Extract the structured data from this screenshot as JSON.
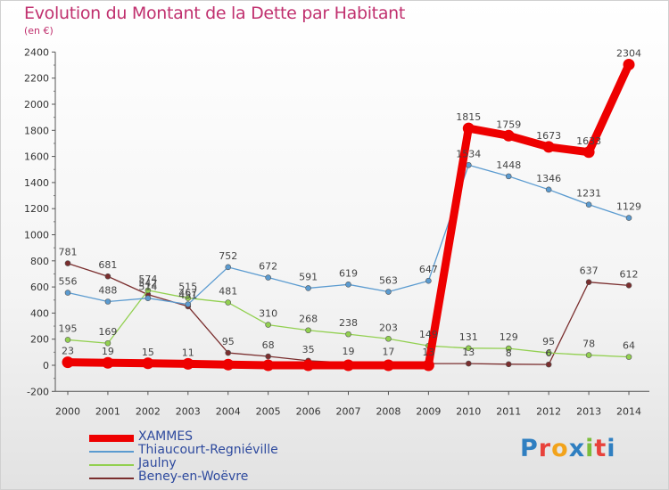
{
  "title": "Evolution du Montant de la Dette par Habitant",
  "subtitle": "(en €)",
  "brand": "Proxiti",
  "chart_data": {
    "type": "line",
    "title": "Evolution du Montant de la Dette par Habitant",
    "subtitle": "(en €)",
    "x": [
      2000,
      2001,
      2002,
      2003,
      2004,
      2005,
      2006,
      2007,
      2008,
      2009,
      2010,
      2011,
      2012,
      2013,
      2014
    ],
    "ylim": [
      -200,
      2400
    ],
    "yticks": [
      -200,
      0,
      200,
      400,
      600,
      800,
      1000,
      1200,
      1400,
      1600,
      1800,
      2000,
      2200,
      2400
    ],
    "grid": false,
    "legend_position": "bottom-left",
    "series": [
      {
        "name": "XAMMES",
        "color": "#ee0000",
        "values": [
          23,
          19,
          15,
          11,
          5,
          0,
          0,
          0,
          0,
          0,
          1815,
          1759,
          1673,
          1633,
          2304
        ],
        "labels": [
          "23",
          "19",
          "15",
          "11",
          "",
          "",
          "",
          "",
          "",
          "",
          "1815",
          "1759",
          "1673",
          "1633",
          "2304"
        ]
      },
      {
        "name": "Thiaucourt-Regniéville",
        "color": "#5b9bd0",
        "values": [
          556,
          488,
          514,
          467,
          752,
          672,
          591,
          619,
          563,
          647,
          1534,
          1448,
          1346,
          1231,
          1129
        ],
        "labels": [
          "556",
          "488",
          "514",
          "467",
          "752",
          "672",
          "591",
          "619",
          "563",
          "647",
          "1534",
          "1448",
          "1346",
          "1231",
          "1129"
        ]
      },
      {
        "name": "Jaulny",
        "color": "#92d050",
        "values": [
          195,
          169,
          574,
          515,
          481,
          310,
          268,
          238,
          203,
          149,
          131,
          129,
          95,
          78,
          64
        ],
        "labels": [
          "195",
          "169",
          "574",
          "515",
          "481",
          "310",
          "268",
          "238",
          "203",
          "149",
          "131",
          "129",
          "95",
          "78",
          "64"
        ]
      },
      {
        "name": "Beney-en-Woëvre",
        "color": "#7a2e2e",
        "values": [
          781,
          681,
          542,
          451,
          95,
          68,
          35,
          19,
          17,
          13,
          13,
          8,
          6,
          637,
          612
        ],
        "labels": [
          "781",
          "681",
          "542",
          "451",
          "95",
          "68",
          "35",
          "19",
          "17",
          "13",
          "13",
          "8",
          "6",
          "637",
          "612"
        ]
      }
    ]
  }
}
